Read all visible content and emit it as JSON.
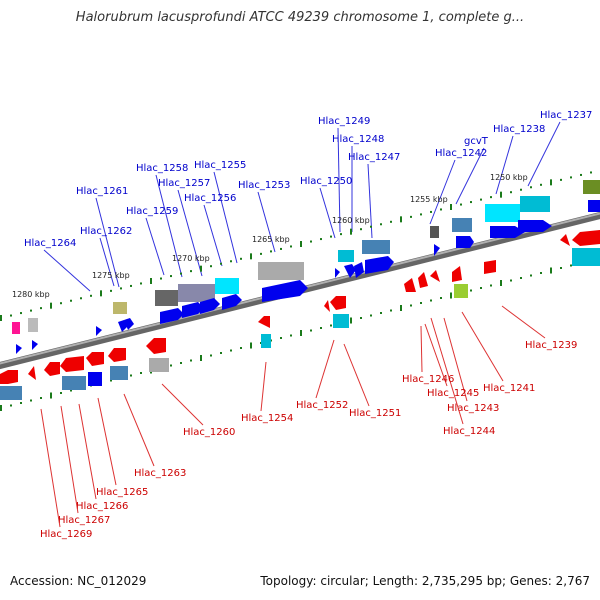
{
  "title": "Halorubrum lacusprofundi ATCC 49239 chromosome 1, complete g...",
  "footer": {
    "accession": "Accession: NC_012029",
    "summary": "Topology: circular; Length: 2,735,295 bp; Genes: 2,767"
  },
  "colors": {
    "forward_label": "#0000cc",
    "reverse_label": "#cc0000",
    "forward_gene": "#0000ee",
    "reverse_gene": "#ee0000",
    "backbone": "#888888",
    "tick": "#1a7a1a"
  },
  "scale_ticks": [
    "1280 kbp",
    "1275 kbp",
    "1270 kbp",
    "1265 kbp",
    "1260 kbp",
    "1255 kbp",
    "1250 kbp"
  ],
  "forward_labels": [
    "Hlac_1237",
    "Hlac_1238",
    "gcvT",
    "Hlac_1242",
    "Hlac_1247",
    "Hlac_1248",
    "Hlac_1249",
    "Hlac_1250",
    "Hlac_1253",
    "Hlac_1255",
    "Hlac_1256",
    "Hlac_1257",
    "Hlac_1258",
    "Hlac_1259",
    "Hlac_1261",
    "Hlac_1262",
    "Hlac_1264"
  ],
  "reverse_labels": [
    "Hlac_1239",
    "Hlac_1241",
    "Hlac_1243",
    "Hlac_1244",
    "Hlac_1245",
    "Hlac_1246",
    "Hlac_1251",
    "Hlac_1252",
    "Hlac_1254",
    "Hlac_1260",
    "Hlac_1263",
    "Hlac_1265",
    "Hlac_1266",
    "Hlac_1267",
    "Hlac_1269"
  ]
}
